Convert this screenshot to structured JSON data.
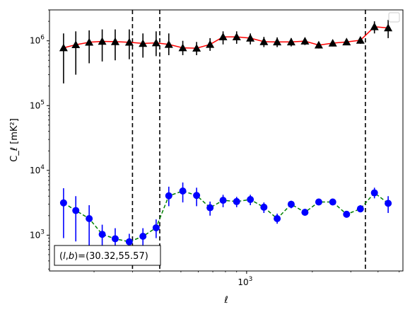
{
  "chart_data": {
    "type": "scatter",
    "xscale": "log",
    "yscale": "log",
    "xlabel": "ℓ",
    "ylabel": "C_ℓ  [mK²]",
    "xlim": [
      125,
      5200
    ],
    "ylim": [
      280,
      3000000
    ],
    "x_ticks": [
      {
        "value": 1000,
        "base": "10",
        "exp": "3"
      }
    ],
    "y_ticks": [
      {
        "value": 1000,
        "base": "10",
        "exp": "3"
      },
      {
        "value": 10000,
        "base": "10",
        "exp": "4"
      },
      {
        "value": 100000,
        "base": "10",
        "exp": "5"
      },
      {
        "value": 1000000,
        "base": "10",
        "exp": "6"
      }
    ],
    "legend": {
      "position": "top-right",
      "entries": []
    },
    "annotation": {
      "prefix": "(",
      "l": "l",
      "comma": ",",
      "b": "b",
      "suffix": ")=(30.32,55.57)"
    },
    "vlines": [
      300,
      400,
      3500
    ],
    "series": [
      {
        "marker": "triangle",
        "marker_color": "#000000",
        "line_color": "#ff0000",
        "line_style": "solid",
        "errorbar_color": "#000000",
        "points": [
          {
            "x": 145,
            "y": 780000,
            "lo": 220000,
            "hi": 1300000
          },
          {
            "x": 165,
            "y": 870000,
            "lo": 300000,
            "hi": 1400000
          },
          {
            "x": 190,
            "y": 950000,
            "lo": 450000,
            "hi": 1450000
          },
          {
            "x": 218,
            "y": 980000,
            "lo": 480000,
            "hi": 1500000
          },
          {
            "x": 250,
            "y": 970000,
            "lo": 500000,
            "hi": 1500000
          },
          {
            "x": 290,
            "y": 950000,
            "lo": 520000,
            "hi": 1500000
          },
          {
            "x": 335,
            "y": 910000,
            "lo": 550000,
            "hi": 1300000
          },
          {
            "x": 385,
            "y": 930000,
            "lo": 580000,
            "hi": 1400000
          },
          {
            "x": 440,
            "y": 880000,
            "lo": 600000,
            "hi": 1300000
          },
          {
            "x": 510,
            "y": 780000,
            "lo": 600000,
            "hi": 1000000
          },
          {
            "x": 590,
            "y": 770000,
            "lo": 600000,
            "hi": 960000
          },
          {
            "x": 680,
            "y": 880000,
            "lo": 700000,
            "hi": 1100000
          },
          {
            "x": 780,
            "y": 1150000,
            "lo": 880000,
            "hi": 1400000
          },
          {
            "x": 900,
            "y": 1150000,
            "lo": 900000,
            "hi": 1400000
          },
          {
            "x": 1040,
            "y": 1100000,
            "lo": 880000,
            "hi": 1300000
          },
          {
            "x": 1200,
            "y": 970000,
            "lo": 800000,
            "hi": 1150000
          },
          {
            "x": 1380,
            "y": 960000,
            "lo": 800000,
            "hi": 1130000
          },
          {
            "x": 1600,
            "y": 960000,
            "lo": 820000,
            "hi": 1100000
          },
          {
            "x": 1850,
            "y": 990000,
            "lo": 860000,
            "hi": 1120000
          },
          {
            "x": 2140,
            "y": 860000,
            "lo": 760000,
            "hi": 960000
          },
          {
            "x": 2480,
            "y": 920000,
            "lo": 820000,
            "hi": 1020000
          },
          {
            "x": 2870,
            "y": 960000,
            "lo": 860000,
            "hi": 1060000
          },
          {
            "x": 3320,
            "y": 1020000,
            "lo": 900000,
            "hi": 1150000
          },
          {
            "x": 3850,
            "y": 1650000,
            "lo": 1300000,
            "hi": 2000000
          },
          {
            "x": 4450,
            "y": 1580000,
            "lo": 1100000,
            "hi": 2100000
          }
        ]
      },
      {
        "marker": "circle",
        "marker_color": "#0000ff",
        "line_color": "#008000",
        "line_style": "dashed",
        "errorbar_color": "#0000ff",
        "points": [
          {
            "x": 145,
            "y": 3150,
            "lo": 900,
            "hi": 5300
          },
          {
            "x": 165,
            "y": 2400,
            "lo": 800,
            "hi": 4000
          },
          {
            "x": 190,
            "y": 1800,
            "lo": 700,
            "hi": 2900
          },
          {
            "x": 218,
            "y": 1030,
            "lo": 600,
            "hi": 1450
          },
          {
            "x": 250,
            "y": 880,
            "lo": 560,
            "hi": 1280
          },
          {
            "x": 290,
            "y": 790,
            "lo": 600,
            "hi": 1050
          },
          {
            "x": 335,
            "y": 960,
            "lo": 700,
            "hi": 1280
          },
          {
            "x": 385,
            "y": 1300,
            "lo": 900,
            "hi": 1750
          },
          {
            "x": 440,
            "y": 4050,
            "lo": 2800,
            "hi": 5600
          },
          {
            "x": 510,
            "y": 4800,
            "lo": 3200,
            "hi": 6500
          },
          {
            "x": 590,
            "y": 4100,
            "lo": 2800,
            "hi": 5400
          },
          {
            "x": 680,
            "y": 2650,
            "lo": 2000,
            "hi": 3300
          },
          {
            "x": 780,
            "y": 3450,
            "lo": 2700,
            "hi": 4200
          },
          {
            "x": 900,
            "y": 3300,
            "lo": 2700,
            "hi": 3900
          },
          {
            "x": 1040,
            "y": 3550,
            "lo": 2900,
            "hi": 4200
          },
          {
            "x": 1200,
            "y": 2700,
            "lo": 2200,
            "hi": 3200
          },
          {
            "x": 1380,
            "y": 1800,
            "lo": 1500,
            "hi": 2150
          },
          {
            "x": 1600,
            "y": 3000,
            "lo": 2600,
            "hi": 3400
          },
          {
            "x": 1850,
            "y": 2250,
            "lo": 2000,
            "hi": 2550
          },
          {
            "x": 2140,
            "y": 3250,
            "lo": 2900,
            "hi": 3600
          },
          {
            "x": 2480,
            "y": 3250,
            "lo": 2950,
            "hi": 3550
          },
          {
            "x": 2870,
            "y": 2100,
            "lo": 1900,
            "hi": 2350
          },
          {
            "x": 3320,
            "y": 2550,
            "lo": 2250,
            "hi": 2900
          },
          {
            "x": 3850,
            "y": 4500,
            "lo": 3700,
            "hi": 5400
          },
          {
            "x": 4450,
            "y": 3100,
            "lo": 2200,
            "hi": 4000
          }
        ]
      }
    ]
  }
}
